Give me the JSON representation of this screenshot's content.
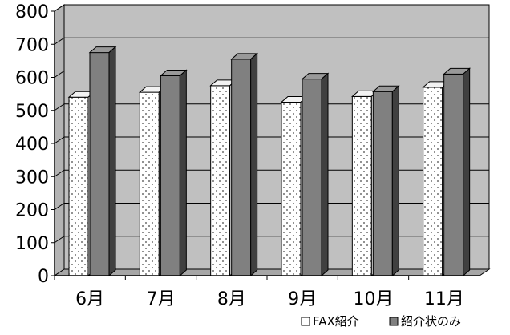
{
  "chart_data": {
    "type": "bar",
    "categories": [
      "6月",
      "7月",
      "8月",
      "9月",
      "10月",
      "11月"
    ],
    "series": [
      {
        "name": "FAX紹介",
        "values": [
          540,
          555,
          575,
          525,
          542,
          570
        ]
      },
      {
        "name": "紹介状のみ",
        "values": [
          675,
          605,
          655,
          595,
          557,
          610
        ]
      }
    ],
    "ylim": [
      0,
      800
    ],
    "yticks": [
      0,
      100,
      200,
      300,
      400,
      500,
      600,
      700,
      800
    ],
    "grid": true,
    "legend_position": "bottom-right",
    "colors": {
      "plot_wall": "#c0c0c0",
      "floor": "#a6a6a6",
      "series1_face": "#ffffff",
      "series1_dots": "#444444",
      "series2_face": "#808080",
      "series2_top": "#999999",
      "series2_side": "#404040",
      "grid": "#000000"
    }
  }
}
